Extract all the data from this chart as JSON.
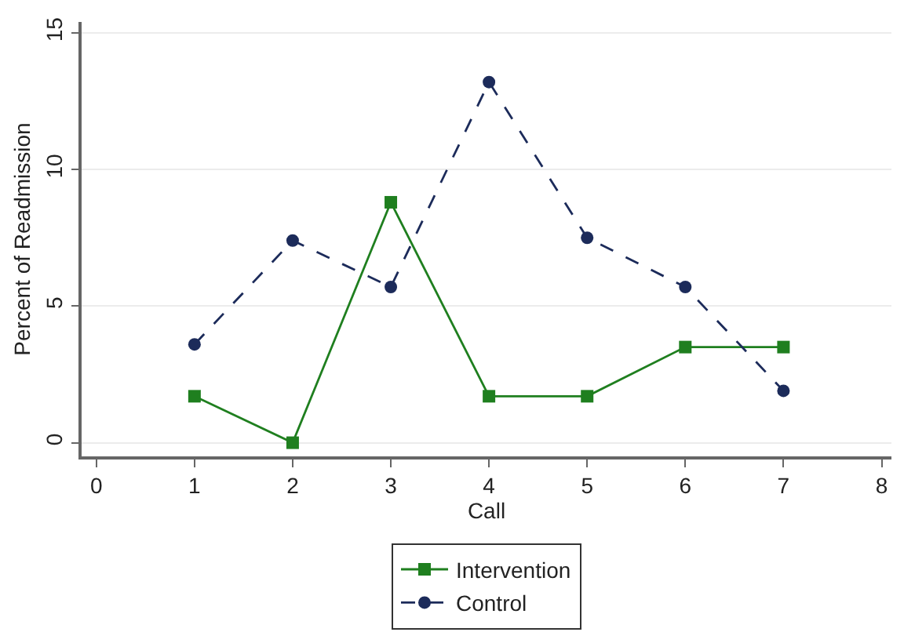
{
  "chart_data": {
    "type": "line",
    "xlabel": "Call",
    "ylabel": "Percent of Readmission",
    "x": [
      1,
      2,
      3,
      4,
      5,
      6,
      7
    ],
    "series": [
      {
        "name": "Intervention",
        "color": "#1f7f1f",
        "marker": "square",
        "line_style": "solid",
        "values": [
          1.7,
          0,
          8.8,
          1.7,
          1.7,
          3.5,
          3.5
        ]
      },
      {
        "name": "Control",
        "color": "#1c2b5a",
        "marker": "circle",
        "line_style": "dashed",
        "values": [
          3.6,
          7.4,
          5.7,
          13.2,
          7.5,
          5.7,
          1.9
        ]
      }
    ],
    "xlim": [
      -0.15,
      8.1
    ],
    "xticks": [
      0,
      1,
      2,
      3,
      4,
      5,
      6,
      7,
      8
    ],
    "ylim": [
      -0.5,
      15.4
    ],
    "yticks": [
      0,
      5,
      10,
      15
    ],
    "grid": "y",
    "legend": "bottom"
  }
}
